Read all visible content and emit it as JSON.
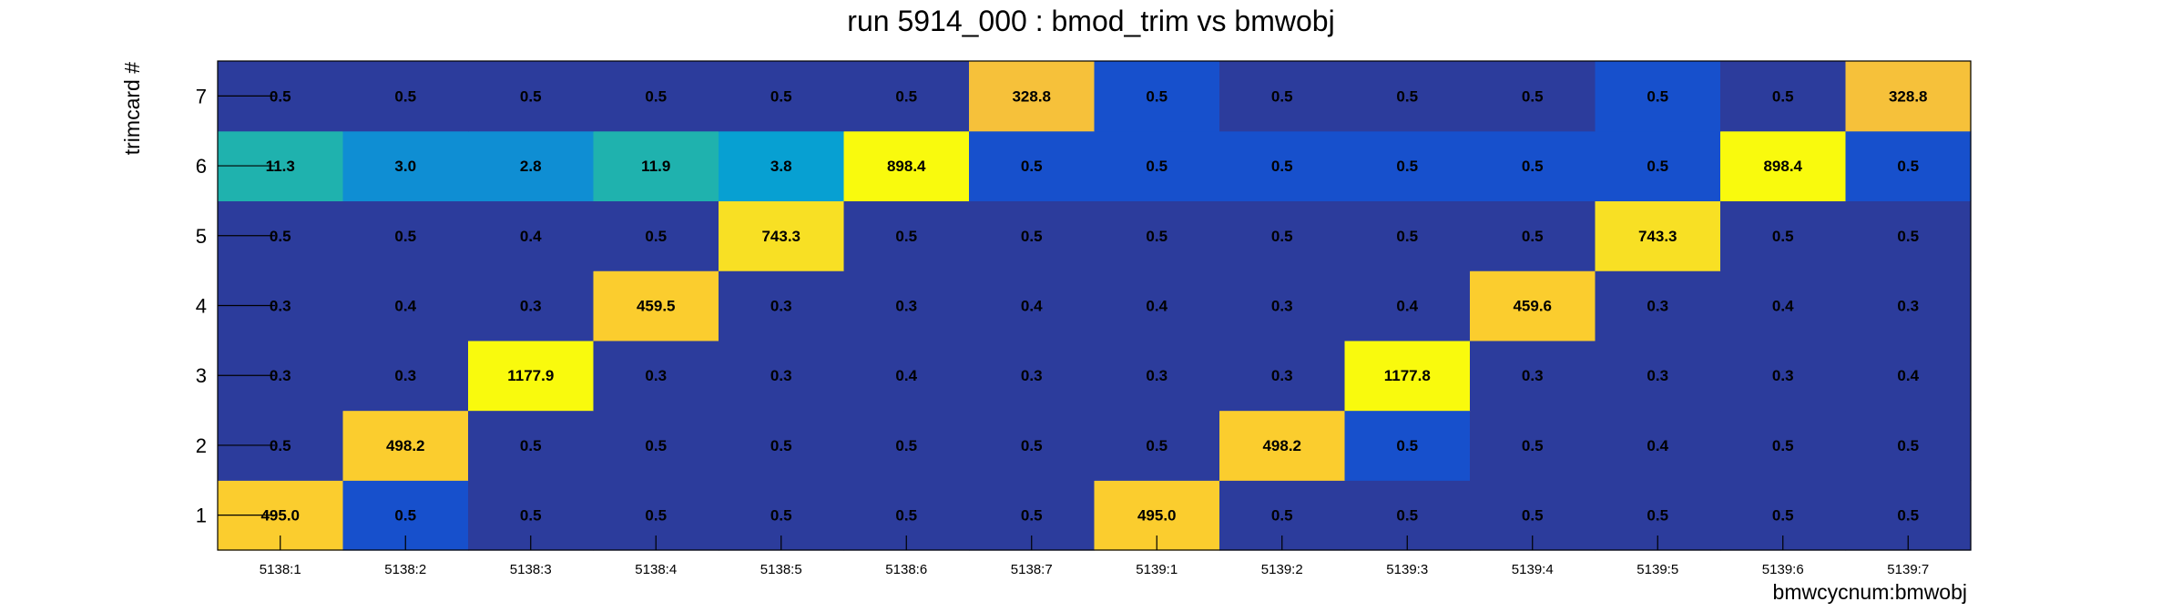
{
  "chart_data": {
    "type": "heatmap",
    "title": "run 5914_000 : bmod_trim vs bmwobj",
    "xlabel": "bmwcycnum:bmwobj",
    "ylabel": "trimcard #",
    "x_categories": [
      "5138:1",
      "5138:2",
      "5138:3",
      "5138:4",
      "5138:5",
      "5138:6",
      "5138:7",
      "5139:1",
      "5139:2",
      "5139:3",
      "5139:4",
      "5139:5",
      "5139:6",
      "5139:7"
    ],
    "y_categories": [
      "1",
      "2",
      "3",
      "4",
      "5",
      "6",
      "7"
    ],
    "values": [
      [
        "495.0",
        "0.5",
        "0.5",
        "0.5",
        "0.5",
        "0.5",
        "0.5",
        "495.0",
        "0.5",
        "0.5",
        "0.5",
        "0.5",
        "0.5",
        "0.5"
      ],
      [
        "0.5",
        "498.2",
        "0.5",
        "0.5",
        "0.5",
        "0.5",
        "0.5",
        "0.5",
        "498.2",
        "0.5",
        "0.5",
        "0.4",
        "0.5",
        "0.5"
      ],
      [
        "0.3",
        "0.3",
        "1177.9",
        "0.3",
        "0.3",
        "0.4",
        "0.3",
        "0.3",
        "0.3",
        "1177.8",
        "0.3",
        "0.3",
        "0.3",
        "0.4"
      ],
      [
        "0.3",
        "0.4",
        "0.3",
        "459.5",
        "0.3",
        "0.3",
        "0.4",
        "0.4",
        "0.3",
        "0.4",
        "459.6",
        "0.3",
        "0.4",
        "0.3"
      ],
      [
        "0.5",
        "0.5",
        "0.4",
        "0.5",
        "743.3",
        "0.5",
        "0.5",
        "0.5",
        "0.5",
        "0.5",
        "0.5",
        "743.3",
        "0.5",
        "0.5"
      ],
      [
        "11.3",
        "3.0",
        "2.8",
        "11.9",
        "3.8",
        "898.4",
        "0.5",
        "0.5",
        "0.5",
        "0.5",
        "0.5",
        "0.5",
        "898.4",
        "0.5"
      ],
      [
        "0.5",
        "0.5",
        "0.5",
        "0.5",
        "0.5",
        "0.5",
        "328.8",
        "0.5",
        "0.5",
        "0.5",
        "0.5",
        "0.5",
        "0.5",
        "328.8"
      ]
    ],
    "cell_colors": [
      [
        "#fbcd2e",
        "#1750cc",
        "#2c3c9c",
        "#2c3c9c",
        "#2c3c9c",
        "#2c3c9c",
        "#2c3c9c",
        "#fbcd2e",
        "#2c3c9c",
        "#2c3c9c",
        "#2c3c9c",
        "#2c3c9c",
        "#2c3c9c",
        "#2c3c9c"
      ],
      [
        "#2c3c9c",
        "#fbcd2e",
        "#2c3c9c",
        "#2c3c9c",
        "#2c3c9c",
        "#2c3c9c",
        "#2c3c9c",
        "#2c3c9c",
        "#fbcd2e",
        "#1750cc",
        "#2c3c9c",
        "#2c3c9c",
        "#2c3c9c",
        "#2c3c9c"
      ],
      [
        "#2c3c9c",
        "#2c3c9c",
        "#f9fa0d",
        "#2c3c9c",
        "#2c3c9c",
        "#2c3c9c",
        "#2c3c9c",
        "#2c3c9c",
        "#2c3c9c",
        "#f9fa0d",
        "#2c3c9c",
        "#2c3c9c",
        "#2c3c9c",
        "#2c3c9c"
      ],
      [
        "#2c3c9c",
        "#2c3c9c",
        "#2c3c9c",
        "#fbcd2e",
        "#2c3c9c",
        "#2c3c9c",
        "#2c3c9c",
        "#2c3c9c",
        "#2c3c9c",
        "#2c3c9c",
        "#fbcd2e",
        "#2c3c9c",
        "#2c3c9c",
        "#2c3c9c"
      ],
      [
        "#2c3c9c",
        "#2c3c9c",
        "#2c3c9c",
        "#2c3c9c",
        "#f8e024",
        "#2c3c9c",
        "#2c3c9c",
        "#2c3c9c",
        "#2c3c9c",
        "#2c3c9c",
        "#2c3c9c",
        "#f8e024",
        "#2c3c9c",
        "#2c3c9c"
      ],
      [
        "#1fb2ae",
        "#0f8ed3",
        "#0f8ed3",
        "#1fb2ae",
        "#07a0d2",
        "#f9fa0d",
        "#1750cc",
        "#1750cc",
        "#1750cc",
        "#1750cc",
        "#1750cc",
        "#1750cc",
        "#f9fa0d",
        "#1750cc"
      ],
      [
        "#2c3c9c",
        "#2c3c9c",
        "#2c3c9c",
        "#2c3c9c",
        "#2c3c9c",
        "#2c3c9c",
        "#f6c13a",
        "#1750cc",
        "#2c3c9c",
        "#2c3c9c",
        "#2c3c9c",
        "#1750cc",
        "#2c3c9c",
        "#f6c13a"
      ]
    ],
    "grid": false,
    "legend": "none"
  }
}
